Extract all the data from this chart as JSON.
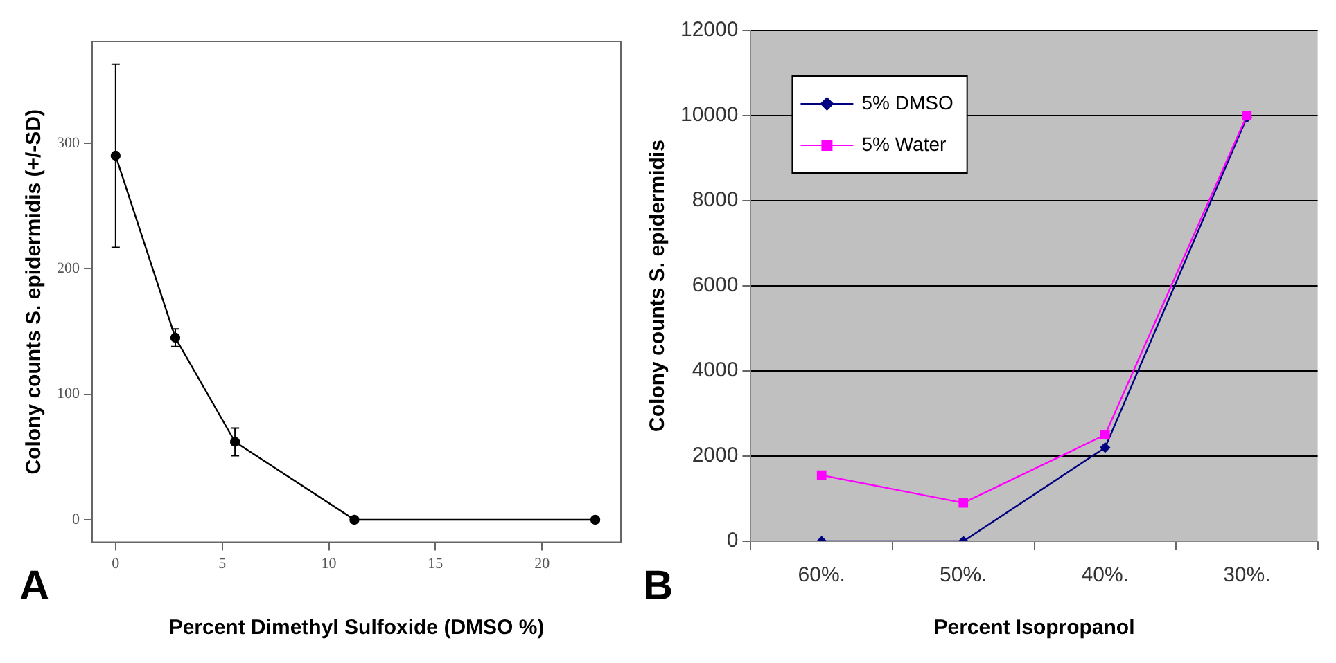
{
  "chart_data": [
    {
      "type": "line",
      "xlabel": "Percent Dimethyl Sulfoxide (DMSO %)",
      "ylabel": "Colony counts S. epidermidis (+/-SD)",
      "annotations": [
        "A"
      ],
      "x": [
        0,
        2.8,
        5.6,
        11.2,
        22.5
      ],
      "series": [
        {
          "color": "#000000",
          "values": [
            290,
            145,
            62,
            0,
            0
          ],
          "errors": [
            73,
            7,
            11,
            null,
            null
          ]
        }
      ],
      "xlim": [
        -1.1,
        23.7
      ],
      "ylim": [
        -18,
        381
      ],
      "xticks": [
        0,
        5,
        10,
        15,
        20
      ],
      "yticks": [
        0,
        100,
        200,
        300
      ],
      "grid": false,
      "legend": false,
      "marker": "circle",
      "line_style": "solid"
    },
    {
      "type": "line",
      "xlabel": "Percent Isopropanol",
      "ylabel": "Colony counts S. epidermidis",
      "annotations": [
        "B"
      ],
      "categories": [
        "60%.",
        "50%.",
        "40%.",
        "30%."
      ],
      "series": [
        {
          "name": "5% DMSO",
          "color": "#000080",
          "marker": "diamond",
          "values": [
            0,
            0,
            2200,
            9950
          ]
        },
        {
          "name": "5% Water",
          "color": "#ff00ff",
          "marker": "square",
          "values": [
            1550,
            900,
            2500,
            10000
          ]
        }
      ],
      "ylim": [
        0,
        12000
      ],
      "yticks": [
        0,
        2000,
        4000,
        6000,
        8000,
        10000,
        12000
      ],
      "grid": "y",
      "legend": "top left",
      "line_style": "solid"
    }
  ]
}
